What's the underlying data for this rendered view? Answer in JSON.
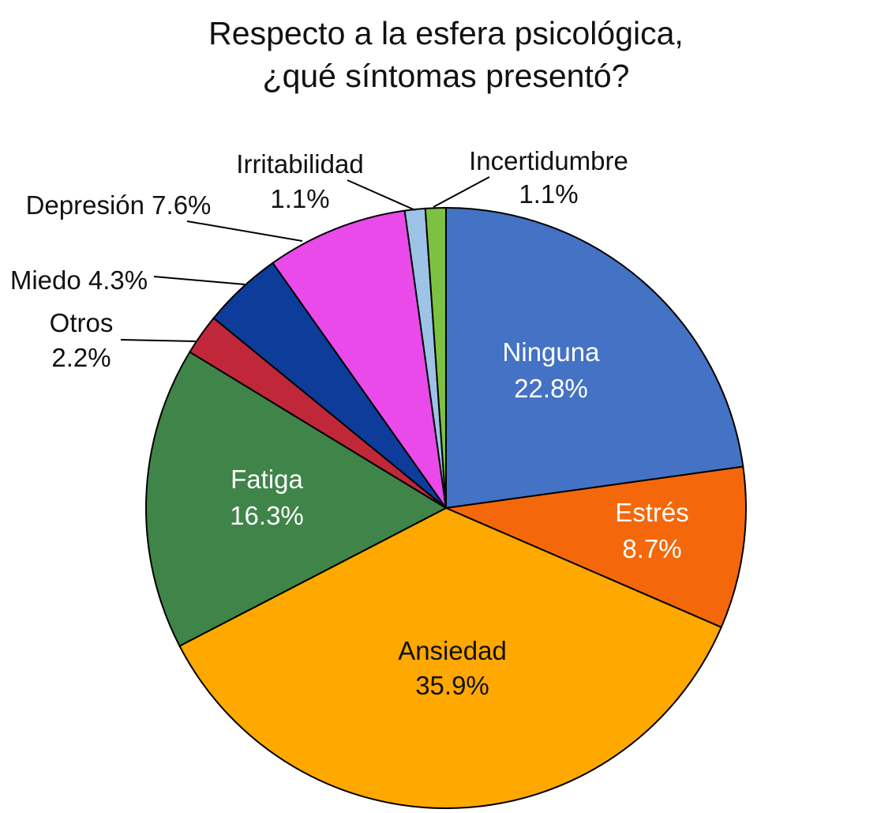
{
  "chart_data": {
    "type": "pie",
    "title": [
      "Respecto a la esfera psicológica,",
      "¿qué síntomas presentó?"
    ],
    "start_angle": "12 o'clock",
    "direction": "clockwise",
    "slices": [
      {
        "label": "Ninguna",
        "value": 22.8,
        "text": "22.8%",
        "color": "#4472C4"
      },
      {
        "label": "Estrés",
        "value": 8.7,
        "text": "8.7%",
        "color": "#F4680B"
      },
      {
        "label": "Ansiedad",
        "value": 35.9,
        "text": "35.9%",
        "color": "#FFA800"
      },
      {
        "label": "Fatiga",
        "value": 16.3,
        "text": "16.3%",
        "color": "#3F8448"
      },
      {
        "label": "Otros",
        "value": 2.2,
        "text": "2.2%",
        "color": "#C0283A"
      },
      {
        "label": "Miedo",
        "value": 4.3,
        "text": "4.3%",
        "color": "#0E3C9A"
      },
      {
        "label": "Depresión",
        "value": 7.6,
        "text": "7.6%",
        "color": "#EA4AEA"
      },
      {
        "label": "Irritabilidad",
        "value": 1.1,
        "text": "1.1%",
        "color": "#9DC3E6"
      },
      {
        "label": "Incertidumbre",
        "value": 1.1,
        "text": "1.1%",
        "color": "#7DC142"
      }
    ]
  }
}
